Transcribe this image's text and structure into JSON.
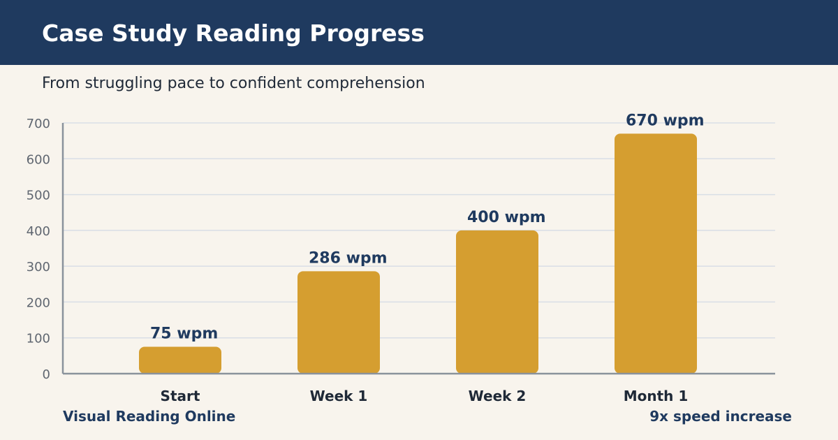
{
  "header": {
    "title": "Case Study Reading Progress",
    "background_color": "#1f3a5f"
  },
  "subtitle": "From struggling pace to confident comprehension",
  "footer": {
    "brand": "Visual Reading Online",
    "summary": "9x speed increase"
  },
  "colors": {
    "bar": "#d59e30",
    "accent": "#1f3a5f",
    "background": "#f8f4ed"
  },
  "chart_data": {
    "type": "bar",
    "categories": [
      "Start",
      "Week 1",
      "Week 2",
      "Month 1"
    ],
    "values": [
      75,
      286,
      400,
      670
    ],
    "data_labels": [
      "75 wpm",
      "286 wpm",
      "400 wpm",
      "670 wpm"
    ],
    "title": "",
    "xlabel": "",
    "ylabel": "",
    "ylim": [
      0,
      700
    ],
    "yticks": [
      0,
      100,
      200,
      300,
      400,
      500,
      600,
      700
    ],
    "grid": true,
    "legend": "none"
  }
}
